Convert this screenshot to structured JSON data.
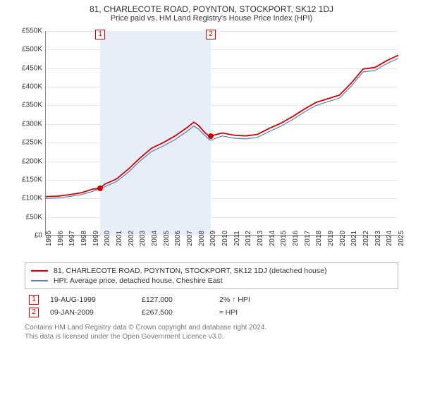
{
  "title": "81, CHARLECOTE ROAD, POYNTON, STOCKPORT, SK12 1DJ",
  "subtitle": "Price paid vs. HM Land Registry's House Price Index (HPI)",
  "chart": {
    "type": "line",
    "background_color": "#ffffff",
    "grid_color": "#e5e5e5",
    "axis_color": "#888888",
    "shade_color": "#e8eef7",
    "x_years": [
      1995,
      1996,
      1997,
      1998,
      1999,
      2000,
      2001,
      2002,
      2003,
      2004,
      2005,
      2006,
      2007,
      2008,
      2009,
      2010,
      2011,
      2012,
      2013,
      2014,
      2015,
      2016,
      2017,
      2018,
      2019,
      2020,
      2021,
      2022,
      2023,
      2024,
      2025
    ],
    "xlim": [
      1995,
      2025
    ],
    "ylim": [
      0,
      550000
    ],
    "ytick_step": 50000,
    "ytick_format_prefix": "£",
    "ytick_format_suffix": "K",
    "series": [
      {
        "name": "81, CHARLECOTE ROAD, POYNTON, STOCKPORT, SK12 1DJ (detached house)",
        "color": "#cc0000",
        "line_width": 1.8,
        "data": [
          [
            1995,
            105000
          ],
          [
            1996,
            106000
          ],
          [
            1997,
            110000
          ],
          [
            1998,
            115000
          ],
          [
            1999,
            125000
          ],
          [
            1999.63,
            127000
          ],
          [
            2000,
            138000
          ],
          [
            2001,
            152000
          ],
          [
            2002,
            178000
          ],
          [
            2003,
            208000
          ],
          [
            2004,
            235000
          ],
          [
            2005,
            250000
          ],
          [
            2006,
            268000
          ],
          [
            2007,
            290000
          ],
          [
            2007.6,
            305000
          ],
          [
            2008,
            296000
          ],
          [
            2008.5,
            278000
          ],
          [
            2009,
            264000
          ],
          [
            2009.03,
            267500
          ],
          [
            2010,
            276000
          ],
          [
            2011,
            270000
          ],
          [
            2012,
            268000
          ],
          [
            2013,
            272000
          ],
          [
            2014,
            288000
          ],
          [
            2015,
            302000
          ],
          [
            2016,
            320000
          ],
          [
            2017,
            340000
          ],
          [
            2018,
            358000
          ],
          [
            2019,
            368000
          ],
          [
            2020,
            378000
          ],
          [
            2021,
            410000
          ],
          [
            2022,
            448000
          ],
          [
            2023,
            452000
          ],
          [
            2024,
            470000
          ],
          [
            2025,
            485000
          ]
        ]
      },
      {
        "name": "HPI: Average price, detached house, Cheshire East",
        "color": "#5b7fb5",
        "line_width": 1.2,
        "data": [
          [
            1995,
            100000
          ],
          [
            1996,
            101000
          ],
          [
            1997,
            105000
          ],
          [
            1998,
            110000
          ],
          [
            1999,
            119000
          ],
          [
            2000,
            131000
          ],
          [
            2001,
            145000
          ],
          [
            2002,
            170000
          ],
          [
            2003,
            200000
          ],
          [
            2004,
            226000
          ],
          [
            2005,
            241000
          ],
          [
            2006,
            258000
          ],
          [
            2007,
            280000
          ],
          [
            2007.6,
            295000
          ],
          [
            2008,
            286000
          ],
          [
            2008.5,
            270000
          ],
          [
            2009,
            256000
          ],
          [
            2010,
            268000
          ],
          [
            2011,
            262000
          ],
          [
            2012,
            260000
          ],
          [
            2013,
            264000
          ],
          [
            2014,
            280000
          ],
          [
            2015,
            294000
          ],
          [
            2016,
            312000
          ],
          [
            2017,
            332000
          ],
          [
            2018,
            350000
          ],
          [
            2019,
            360000
          ],
          [
            2020,
            370000
          ],
          [
            2021,
            402000
          ],
          [
            2022,
            440000
          ],
          [
            2023,
            444000
          ],
          [
            2024,
            462000
          ],
          [
            2025,
            477000
          ]
        ]
      }
    ],
    "shade_range": [
      1999.63,
      2009.03
    ],
    "markers": [
      {
        "label": "1",
        "x": 1999.63,
        "y": 127000
      },
      {
        "label": "2",
        "x": 2009.03,
        "y": 267500
      }
    ],
    "dot_color": "#cc0000",
    "tick_fontsize": 10,
    "label_fontsize": 11
  },
  "legend": {
    "items": [
      {
        "color": "#cc0000",
        "label": "81, CHARLECOTE ROAD, POYNTON, STOCKPORT, SK12 1DJ (detached house)"
      },
      {
        "color": "#5b7fb5",
        "label": "HPI: Average price, detached house, Cheshire East"
      }
    ]
  },
  "events": [
    {
      "marker": "1",
      "date": "19-AUG-1999",
      "price": "£127,000",
      "delta": "2% ↑ HPI"
    },
    {
      "marker": "2",
      "date": "09-JAN-2009",
      "price": "£267,500",
      "delta": "≈ HPI"
    }
  ],
  "footer_line1": "Contains HM Land Registry data © Crown copyright and database right 2024.",
  "footer_line2": "This data is licensed under the Open Government Licence v3.0."
}
